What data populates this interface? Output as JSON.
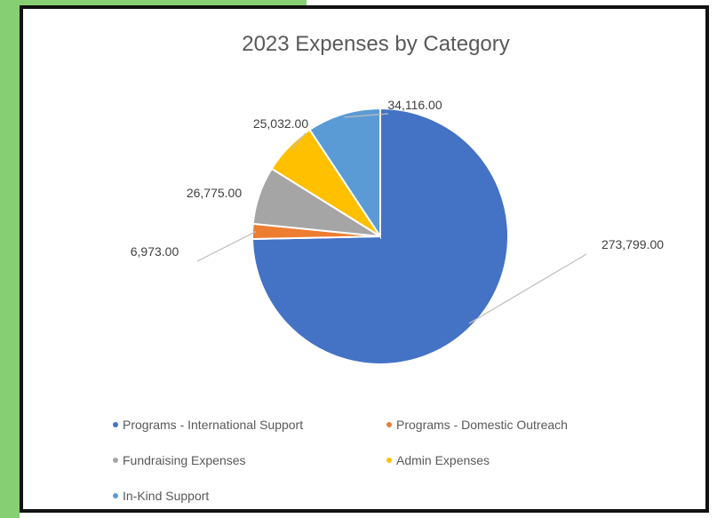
{
  "colors": {
    "green_background": "#86cf73",
    "border": "#111111"
  },
  "chart_data": {
    "type": "pie",
    "title": "2023 Expenses by Category",
    "categories": [
      "Programs - International Support",
      "Programs - Domestic Outreach",
      "Fundraising Expenses",
      "Admin Expenses",
      "In-Kind Support"
    ],
    "values": [
      273799,
      6973,
      26775,
      25032,
      34116
    ],
    "data_labels": [
      "273,799.00",
      "6,973.00",
      "26,775.00",
      "25,032.00",
      "34,116.00"
    ],
    "colors": [
      "#4472c4",
      "#ed7d31",
      "#a5a5a5",
      "#ffc000",
      "#5b9bd5"
    ],
    "legend_position": "bottom",
    "start_angle": "12 o'clock",
    "direction": "clockwise"
  }
}
